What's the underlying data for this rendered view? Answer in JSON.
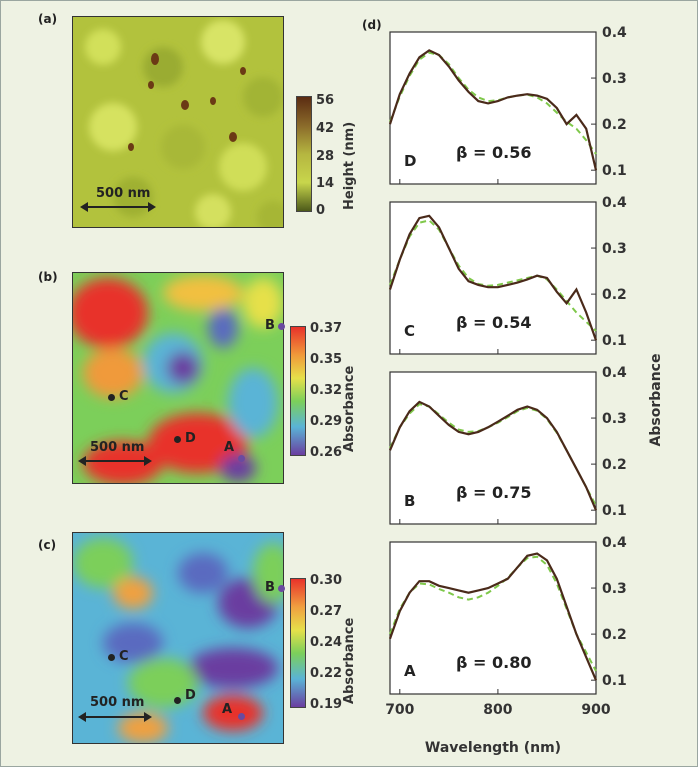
{
  "panels": {
    "a": {
      "label": "(a)",
      "scale_label": "500 nm",
      "colorbar": {
        "title": "Height (nm)",
        "ticks": [
          "56",
          "42",
          "28",
          "14",
          "0"
        ],
        "colors": [
          "#5b2c12",
          "#8a6a2a",
          "#b5b640",
          "#c8d64c",
          "#4d5a1a"
        ]
      }
    },
    "b": {
      "label": "(b)",
      "scale_label": "500 nm",
      "colorbar": {
        "title": "Absorbance",
        "ticks": [
          "0.37",
          "0.35",
          "0.32",
          "0.29",
          "0.26"
        ],
        "colors": [
          "#e8322a",
          "#f09a3a",
          "#e6e04a",
          "#7ccf5a",
          "#5ab4d6",
          "#6a3ea0"
        ]
      },
      "points": [
        {
          "id": "B",
          "color": "#6a4aa0"
        },
        {
          "id": "C",
          "color": "#222222"
        },
        {
          "id": "D",
          "color": "#222222"
        },
        {
          "id": "A",
          "color": "#6a4aa0"
        }
      ]
    },
    "c": {
      "label": "(c)",
      "scale_label": "500 nm",
      "colorbar": {
        "title": "Absorbance",
        "ticks": [
          "0.30",
          "0.27",
          "0.24",
          "0.22",
          "0.19"
        ],
        "colors": [
          "#e8322a",
          "#f0a040",
          "#e6e04a",
          "#7ccf5a",
          "#5ab4d6",
          "#6a3ea0"
        ]
      },
      "points": [
        {
          "id": "B",
          "color": "#6a4aa0"
        },
        {
          "id": "C",
          "color": "#222222"
        },
        {
          "id": "D",
          "color": "#222222"
        },
        {
          "id": "A",
          "color": "#6a4aa0"
        }
      ]
    },
    "d": {
      "label": "(d)"
    }
  },
  "chart_data": {
    "type": "line",
    "xlabel": "Wavelength (nm)",
    "ylabel": "Absorbance",
    "xlim": [
      690,
      900
    ],
    "ylim": [
      0.07,
      0.4
    ],
    "xticks": [
      700,
      800,
      900
    ],
    "yticks": [
      0.1,
      0.2,
      0.3,
      0.4
    ],
    "colors": {
      "measured": "#4a2a1a",
      "fit": "#7fc84a"
    },
    "subplots": [
      {
        "label": "D",
        "beta": "β = 0.56",
        "measured": {
          "x": [
            690,
            700,
            710,
            720,
            730,
            740,
            750,
            760,
            770,
            780,
            790,
            800,
            810,
            820,
            830,
            840,
            850,
            860,
            870,
            880,
            890,
            900
          ],
          "y": [
            0.2,
            0.265,
            0.31,
            0.345,
            0.36,
            0.35,
            0.325,
            0.295,
            0.27,
            0.25,
            0.245,
            0.25,
            0.258,
            0.262,
            0.265,
            0.262,
            0.255,
            0.235,
            0.2,
            0.22,
            0.19,
            0.1
          ]
        },
        "fit": {
          "x": [
            690,
            700,
            710,
            720,
            730,
            740,
            750,
            760,
            770,
            780,
            790,
            800,
            810,
            820,
            830,
            840,
            850,
            860,
            870,
            880,
            890,
            900
          ],
          "y": [
            0.205,
            0.26,
            0.305,
            0.34,
            0.355,
            0.35,
            0.33,
            0.3,
            0.275,
            0.258,
            0.25,
            0.252,
            0.258,
            0.262,
            0.264,
            0.258,
            0.245,
            0.225,
            0.205,
            0.19,
            0.165,
            0.135
          ]
        }
      },
      {
        "label": "C",
        "beta": "β = 0.54",
        "measured": {
          "x": [
            690,
            700,
            710,
            720,
            730,
            740,
            750,
            760,
            770,
            780,
            790,
            800,
            810,
            820,
            830,
            840,
            850,
            860,
            870,
            880,
            890,
            900
          ],
          "y": [
            0.21,
            0.275,
            0.33,
            0.365,
            0.37,
            0.345,
            0.3,
            0.255,
            0.228,
            0.22,
            0.215,
            0.215,
            0.22,
            0.225,
            0.232,
            0.24,
            0.235,
            0.205,
            0.18,
            0.21,
            0.16,
            0.1
          ]
        },
        "fit": {
          "x": [
            690,
            700,
            710,
            720,
            730,
            740,
            750,
            760,
            770,
            780,
            790,
            800,
            810,
            820,
            830,
            840,
            850,
            860,
            870,
            880,
            890,
            900
          ],
          "y": [
            0.22,
            0.275,
            0.325,
            0.355,
            0.36,
            0.34,
            0.3,
            0.262,
            0.235,
            0.222,
            0.218,
            0.22,
            0.225,
            0.23,
            0.235,
            0.24,
            0.232,
            0.21,
            0.185,
            0.16,
            0.14,
            0.12
          ]
        }
      },
      {
        "label": "B",
        "beta": "β = 0.75",
        "measured": {
          "x": [
            690,
            700,
            710,
            720,
            730,
            740,
            750,
            760,
            770,
            780,
            790,
            800,
            810,
            820,
            830,
            840,
            850,
            860,
            870,
            880,
            890,
            900
          ],
          "y": [
            0.23,
            0.28,
            0.315,
            0.335,
            0.325,
            0.305,
            0.285,
            0.27,
            0.265,
            0.27,
            0.28,
            0.292,
            0.305,
            0.318,
            0.325,
            0.318,
            0.3,
            0.27,
            0.23,
            0.19,
            0.15,
            0.1
          ]
        },
        "fit": {
          "x": [
            690,
            700,
            710,
            720,
            730,
            740,
            750,
            760,
            770,
            780,
            790,
            800,
            810,
            820,
            830,
            840,
            850,
            860,
            870,
            880,
            890,
            900
          ],
          "y": [
            0.235,
            0.28,
            0.31,
            0.33,
            0.325,
            0.308,
            0.29,
            0.275,
            0.27,
            0.272,
            0.28,
            0.29,
            0.302,
            0.315,
            0.322,
            0.316,
            0.298,
            0.268,
            0.23,
            0.19,
            0.15,
            0.11
          ]
        }
      },
      {
        "label": "A",
        "beta": "β = 0.80",
        "measured": {
          "x": [
            690,
            700,
            710,
            720,
            730,
            740,
            750,
            760,
            770,
            780,
            790,
            800,
            810,
            820,
            830,
            840,
            850,
            860,
            870,
            880,
            890,
            900
          ],
          "y": [
            0.19,
            0.25,
            0.29,
            0.315,
            0.315,
            0.305,
            0.3,
            0.295,
            0.29,
            0.295,
            0.3,
            0.31,
            0.32,
            0.345,
            0.37,
            0.375,
            0.36,
            0.32,
            0.26,
            0.2,
            0.15,
            0.1
          ]
        },
        "fit": {
          "x": [
            690,
            700,
            710,
            720,
            730,
            740,
            750,
            760,
            770,
            780,
            790,
            800,
            810,
            820,
            830,
            840,
            850,
            860,
            870,
            880,
            890,
            900
          ],
          "y": [
            0.2,
            0.255,
            0.29,
            0.31,
            0.308,
            0.298,
            0.29,
            0.28,
            0.275,
            0.28,
            0.29,
            0.305,
            0.322,
            0.345,
            0.365,
            0.368,
            0.35,
            0.31,
            0.255,
            0.2,
            0.16,
            0.12
          ]
        }
      }
    ]
  }
}
